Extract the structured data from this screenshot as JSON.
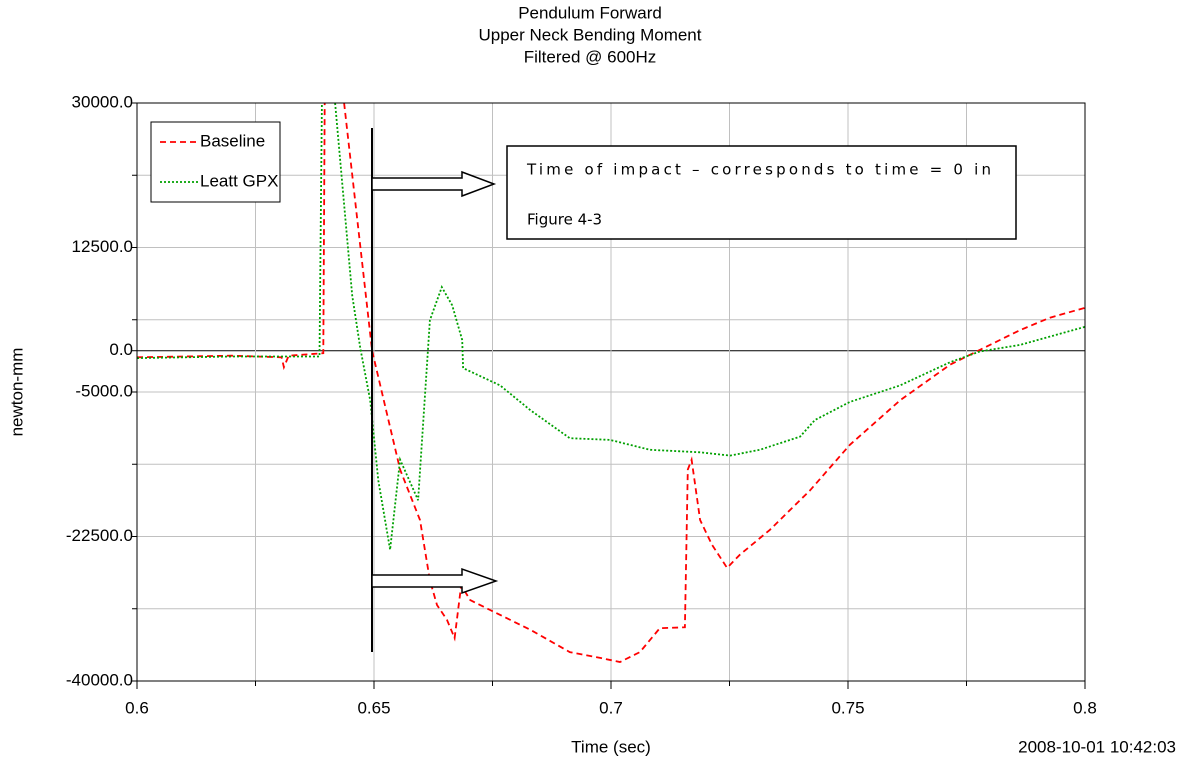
{
  "chart_data": {
    "type": "line",
    "title": [
      "Pendulum Forward",
      "Upper Neck Bending Moment",
      "Filtered @ 600Hz"
    ],
    "x_label": "Time (sec)",
    "y_label": "newton-mm",
    "timestamp": "2008-10-01 10:42:03",
    "annotation": [
      "Time of impact – corresponds to time = 0 in",
      "Figure 4-3"
    ],
    "xlim": [
      0.6,
      0.8
    ],
    "xticks": [
      0.6,
      0.65,
      0.7,
      0.75,
      0.8
    ],
    "minor_xticks": [
      0.625,
      0.675,
      0.725,
      0.775
    ],
    "ylim": [
      -40000,
      30000
    ],
    "yticks": [
      {
        "value": 30000,
        "label": "30000.0"
      },
      {
        "value": 12500,
        "label": "12500.0"
      },
      {
        "value": 0,
        "label": "0.0"
      },
      {
        "value": -5000,
        "label": "-5000.0"
      },
      {
        "value": -22500,
        "label": "-22500.0"
      },
      {
        "value": -40000,
        "label": "-40000.0"
      }
    ],
    "minor_yticks": [
      21250,
      3750,
      -13750,
      -31250
    ],
    "grid": true,
    "legend": "upper-left",
    "series": [
      {
        "name": "Baseline",
        "color": "#ff0000",
        "dash": "6,4",
        "x": [
          0.6,
          0.62,
          0.6305,
          0.631,
          0.632,
          0.6393,
          0.6396,
          null,
          0.6437,
          0.6496,
          0.6555,
          0.6597,
          0.6618,
          0.6633,
          0.6654,
          0.667,
          0.6684,
          0.6703,
          0.6745,
          0.683,
          0.6913,
          0.6977,
          0.7019,
          0.7061,
          0.7103,
          0.7156,
          0.7162,
          0.717,
          0.7188,
          0.7213,
          0.7245,
          0.7272,
          0.7335,
          0.742,
          0.7504,
          0.761,
          0.7715,
          0.7778,
          0.7863,
          0.7926,
          0.8
        ],
        "values": [
          -800,
          -600,
          -800,
          -2000,
          -600,
          -300,
          30000,
          null,
          30000,
          0,
          -14400,
          -20500,
          -27800,
          -30800,
          -32600,
          -34800,
          -28400,
          -30200,
          -31400,
          -33800,
          -36500,
          -37200,
          -37700,
          -36500,
          -33600,
          -33500,
          -14400,
          -13200,
          -20500,
          -23500,
          -26300,
          -24700,
          -21700,
          -16900,
          -11400,
          -6000,
          -1700,
          100,
          2500,
          4000,
          5200
        ]
      },
      {
        "name": "Leatt GPX",
        "color": "#00a000",
        "dash": "2,2",
        "x": [
          0.6,
          0.62,
          0.6385,
          0.639,
          null,
          0.6418,
          0.6454,
          0.6471,
          0.6492,
          0.6509,
          0.6534,
          0.6555,
          0.6593,
          0.6618,
          0.6643,
          0.6665,
          0.6686,
          0.6688,
          0.6766,
          0.683,
          0.6913,
          0.6998,
          0.7082,
          0.7188,
          0.7251,
          0.7314,
          0.7399,
          0.743,
          0.7504,
          0.761,
          0.7715,
          0.7778,
          0.7863,
          0.8
        ],
        "values": [
          -900,
          -700,
          -700,
          30000,
          null,
          30000,
          6700,
          300,
          -6000,
          -15700,
          -24100,
          -13200,
          -18100,
          3700,
          7700,
          5500,
          1300,
          -2100,
          -4200,
          -7200,
          -10600,
          -10800,
          -12000,
          -12300,
          -12700,
          -12000,
          -10400,
          -8400,
          -6200,
          -4200,
          -1400,
          -100,
          700,
          2900
        ]
      }
    ]
  }
}
